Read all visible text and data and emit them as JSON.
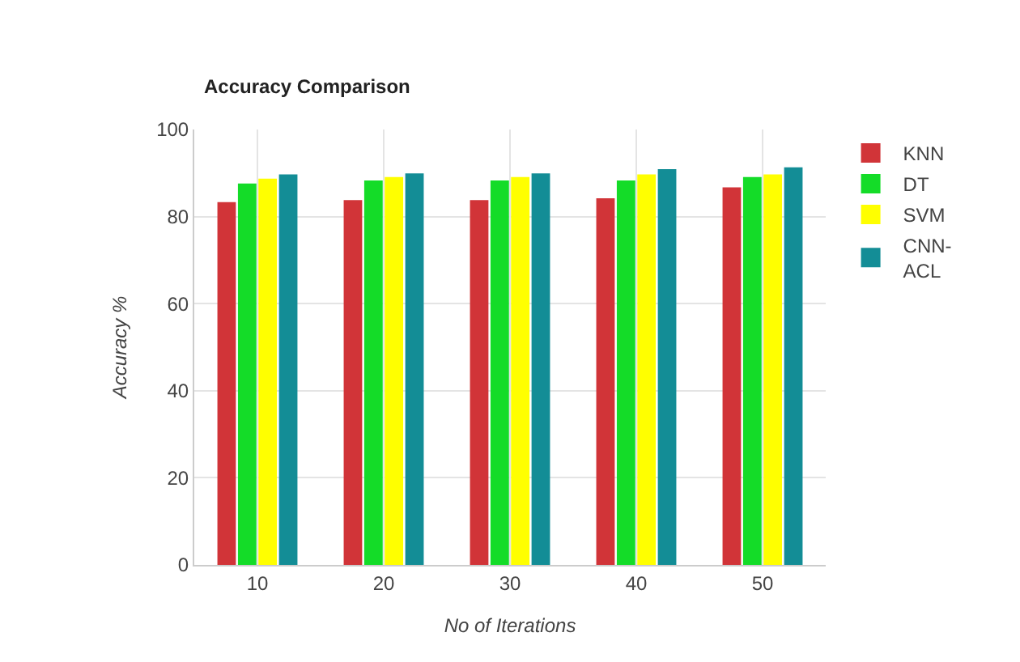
{
  "chart_data": {
    "type": "bar",
    "title": "Accuracy Comparison",
    "xlabel": "No of Iterations",
    "ylabel": "Accuracy %",
    "categories": [
      "10",
      "20",
      "30",
      "40",
      "50"
    ],
    "series": [
      {
        "name": "KNN",
        "color": "#d13438",
        "values": [
          83.3,
          83.8,
          83.8,
          84.2,
          86.7
        ]
      },
      {
        "name": "DT",
        "color": "#14dc28",
        "values": [
          87.6,
          88.3,
          88.3,
          88.3,
          89.1
        ]
      },
      {
        "name": "SVM",
        "color": "#ffff00",
        "values": [
          88.7,
          89.1,
          89.1,
          89.7,
          89.7
        ]
      },
      {
        "name": "CNN-\nACL",
        "color": "#138d96",
        "values": [
          89.7,
          89.9,
          89.9,
          90.9,
          91.3
        ]
      }
    ],
    "ylim": [
      0,
      100
    ],
    "yticks": [
      0,
      20,
      40,
      60,
      80,
      100
    ],
    "grid": true,
    "legend": "right"
  }
}
